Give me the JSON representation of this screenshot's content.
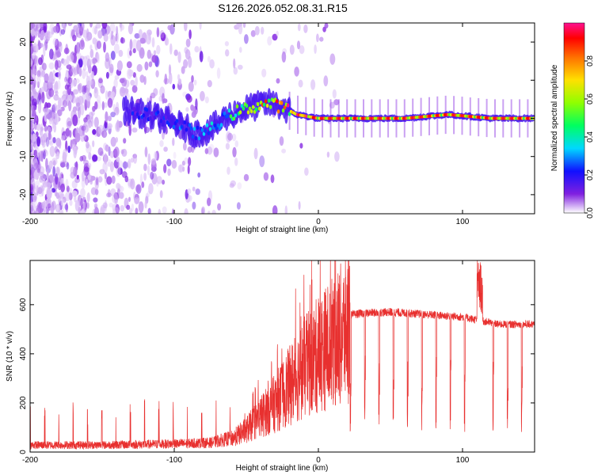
{
  "title": "S126.2026.052.08.31.R15",
  "chart_data": [
    {
      "type": "heatmap",
      "xlabel": "Height of straight line (km)",
      "ylabel": "Frequency (Hz)",
      "xlim": [
        -200,
        150
      ],
      "ylim": [
        -25,
        25
      ],
      "xticks": [
        -200,
        -100,
        0,
        100
      ],
      "yticks": [
        -20,
        -10,
        0,
        10,
        20
      ],
      "colorbar": {
        "label": "Normalized spectral amplitude",
        "range": [
          0,
          1
        ],
        "ticks": [
          "0.0",
          "0.2",
          "0.4",
          "0.6",
          "0.8"
        ]
      },
      "ridge": {
        "x": [
          -130,
          -110,
          -95,
          -85,
          -75,
          -65,
          -55,
          -45,
          -35,
          -25,
          -15,
          0,
          30,
          60,
          90,
          120,
          150
        ],
        "freq_hz": [
          2,
          0,
          -2,
          -4,
          -3,
          0,
          2,
          3,
          4,
          3,
          1,
          0,
          0,
          0,
          1,
          0,
          0
        ],
        "amplitude": [
          0.2,
          0.2,
          0.25,
          0.3,
          0.3,
          0.4,
          0.5,
          0.6,
          0.75,
          0.8,
          0.85,
          0.9,
          0.95,
          0.9,
          0.9,
          0.9,
          0.9
        ]
      }
    },
    {
      "type": "line",
      "xlabel": "Height of straight line (km)",
      "ylabel": "SNR (10 * v/v)",
      "xlim": [
        -200,
        150
      ],
      "ylim": [
        0,
        780
      ],
      "xticks": [
        -200,
        -100,
        0,
        100
      ],
      "yticks": [
        0,
        200,
        400,
        600
      ],
      "color": "#e8302f",
      "envelope": {
        "x": [
          -200,
          -150,
          -100,
          -75,
          -60,
          -50,
          -40,
          -30,
          -20,
          -10,
          0,
          10,
          20,
          30,
          50,
          75,
          100,
          125,
          150
        ],
        "snr": [
          30,
          30,
          35,
          40,
          60,
          100,
          160,
          220,
          300,
          380,
          440,
          500,
          555,
          565,
          570,
          560,
          550,
          520,
          520
        ]
      }
    }
  ]
}
